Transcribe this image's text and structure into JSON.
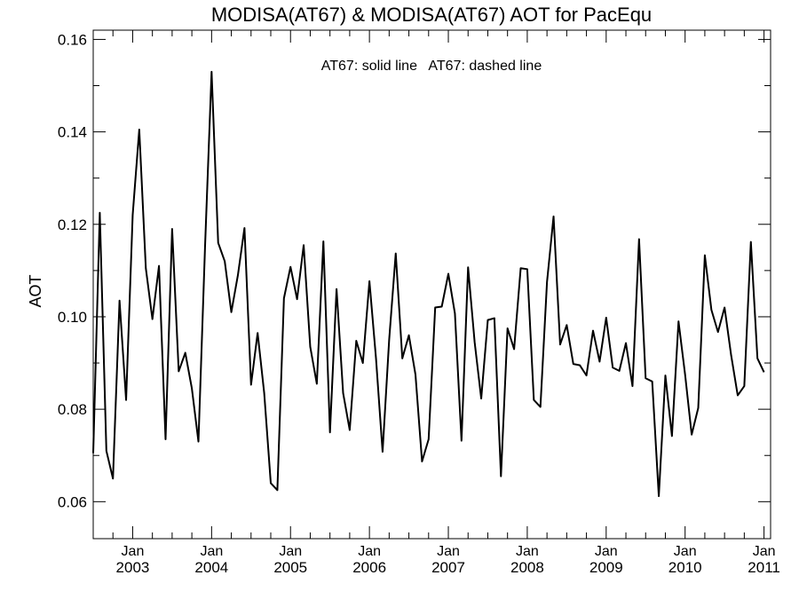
{
  "chart_data": {
    "type": "line",
    "title": "MODISA(AT67) & MODISA(AT67)  AOT for PacEqu",
    "legend_text": "AT67: solid line   AT67: dashed line",
    "ylabel": "AOT",
    "xlabel": "",
    "ylim": [
      0.052,
      0.162
    ],
    "xlim": [
      "2002-07",
      "2011-02"
    ],
    "y_ticks": [
      "0.06",
      "0.08",
      "0.10",
      "0.12",
      "0.14",
      "0.16"
    ],
    "x_ticks": [
      {
        "month": "Jan",
        "year": "2003",
        "date": "2003-01"
      },
      {
        "month": "Jan",
        "year": "2004",
        "date": "2004-01"
      },
      {
        "month": "Jan",
        "year": "2005",
        "date": "2005-01"
      },
      {
        "month": "Jan",
        "year": "2006",
        "date": "2006-01"
      },
      {
        "month": "Jan",
        "year": "2007",
        "date": "2007-01"
      },
      {
        "month": "Jan",
        "year": "2008",
        "date": "2008-01"
      },
      {
        "month": "Jan",
        "year": "2009",
        "date": "2009-01"
      },
      {
        "month": "Jan",
        "year": "2010",
        "date": "2010-01"
      },
      {
        "month": "Jan",
        "year": "2011",
        "date": "2011-01"
      }
    ],
    "grid": false,
    "legend_position": "top-center",
    "line_color": "#000000",
    "series": [
      {
        "style": "solid",
        "start": "2002-07",
        "values": [
          0.0705,
          0.1225,
          0.071,
          0.065,
          0.1035,
          0.082,
          0.122,
          0.1405,
          0.1105,
          0.0995,
          0.111,
          0.0735,
          0.119,
          0.0882,
          0.0922,
          0.0845,
          0.073,
          0.115,
          0.153,
          0.116,
          0.112,
          0.101,
          0.109,
          0.1192,
          0.0853,
          0.0965,
          0.0835,
          0.064,
          0.0625,
          0.104,
          0.1108,
          0.1038,
          0.1155,
          0.0935,
          0.0855,
          0.1163,
          0.075,
          0.106,
          0.0835,
          0.0755,
          0.0948,
          0.09,
          0.1077,
          0.091,
          0.0708,
          0.095,
          0.1137,
          0.091,
          0.096,
          0.0875,
          0.0687,
          0.0735,
          0.102,
          0.1022,
          0.1093,
          0.1007,
          0.0732,
          0.1107,
          0.0945,
          0.0823,
          0.0993,
          0.0997,
          0.0655,
          0.0975,
          0.093,
          0.1105,
          0.1103,
          0.082,
          0.0805,
          0.1075,
          0.1217,
          0.094,
          0.0982,
          0.0898,
          0.0895,
          0.0873,
          0.097,
          0.0903,
          0.0998,
          0.089,
          0.0883,
          0.0943,
          0.085,
          0.1168,
          0.0867,
          0.086,
          0.0612,
          0.0873,
          0.0742,
          0.099,
          0.0875,
          0.0745,
          0.0803,
          0.1133,
          0.1015,
          0.0967,
          0.102,
          0.0917,
          0.083,
          0.085,
          0.1162,
          0.091,
          0.088
        ]
      }
    ]
  }
}
